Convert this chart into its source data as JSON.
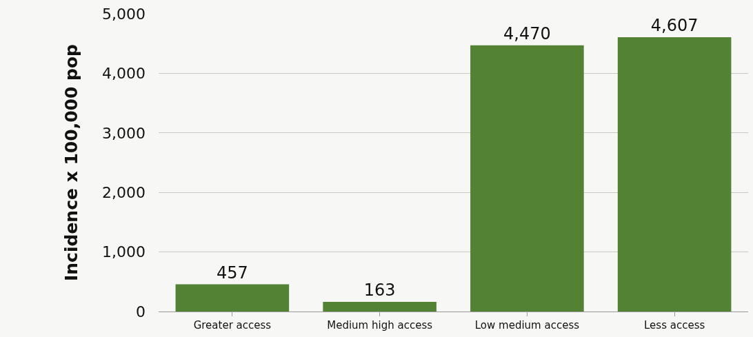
{
  "chart_data": {
    "type": "bar",
    "ylabel": "Incidence x 100,000 pop",
    "categories": [
      "Greater access",
      "Medium high access",
      "Low medium access",
      "Less access"
    ],
    "values": [
      457,
      163,
      4470,
      4607
    ],
    "color": "#548235",
    "value_labels": [
      "457",
      "163",
      "4,470",
      "4,607"
    ],
    "ylim": [
      0,
      5000
    ],
    "yticks": [
      {
        "value": 0,
        "label": "0"
      },
      {
        "value": 1000,
        "label": "1,000"
      },
      {
        "value": 2000,
        "label": "2,000"
      },
      {
        "value": 3000,
        "label": "3,000"
      },
      {
        "value": 4000,
        "label": "4,000"
      },
      {
        "value": 5000,
        "label": "5,000"
      }
    ],
    "grid": "y"
  }
}
